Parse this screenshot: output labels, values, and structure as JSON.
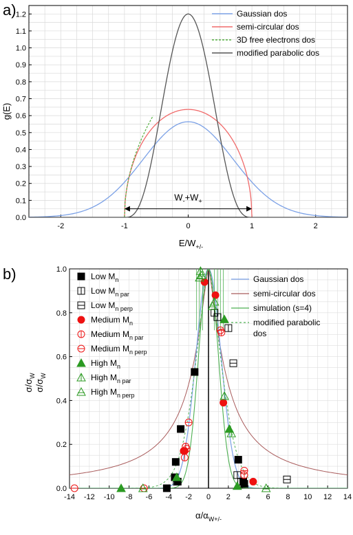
{
  "colors": {
    "gaussian": "#7aa0e6",
    "semicircular": "#f06a6a",
    "free3d": "#55b040",
    "parabolic": "#555555",
    "b_semicircular": "#a85a5a",
    "simulation": "#4caf50",
    "low": "#000000",
    "medium": "#ee1111",
    "high": "#2b9a22"
  },
  "chart_data": [
    {
      "panel": "a)",
      "type": "line",
      "xlabel": "E/W",
      "xlabel_sub": "+/-",
      "ylabel": "g(E)",
      "xlim": [
        -2.5,
        2.5
      ],
      "ylim": [
        0,
        1.25
      ],
      "xticks": [
        -2,
        -1,
        0,
        1,
        2
      ],
      "yticks": [
        0.0,
        0.1,
        0.2,
        0.3,
        0.4,
        0.5,
        0.6,
        0.7,
        0.8,
        0.9,
        1.0,
        1.1,
        1.2
      ],
      "grid": true,
      "legend_position": "top-right",
      "series": [
        {
          "name": "Gaussian dos",
          "color_key": "gaussian",
          "peak": 0.564,
          "note": "gaussian"
        },
        {
          "name": "semi-circular dos",
          "color_key": "semicircular",
          "peak": 0.637
        },
        {
          "name": "3D free electrons dos",
          "color_key": "free3d",
          "style": "dashed",
          "x_range": [
            -1,
            -0.55
          ]
        },
        {
          "name": "modified parabolic dos",
          "color_key": "parabolic",
          "peak": 1.2
        }
      ],
      "annotation": {
        "text": "W",
        "sub1": "-",
        "mid": "+W",
        "sub2": "+",
        "from": -1,
        "to": 1,
        "y": 0.05
      }
    },
    {
      "panel": "b)",
      "type": "scatter",
      "xlabel": "α/α",
      "xlabel_sub": "W+/-",
      "ylabel1": "σ/σ",
      "ylabel1_sub": "W",
      "ylabel2": "σ/σ",
      "ylabel2_sub": "W",
      "xlim": [
        -14,
        14
      ],
      "ylim": [
        0,
        1.0
      ],
      "xticks": [
        -14,
        -12,
        -10,
        -8,
        -6,
        -4,
        -2,
        0,
        2,
        4,
        6,
        8,
        10,
        12,
        14
      ],
      "yticks": [
        0.0,
        0.2,
        0.4,
        0.6,
        0.8,
        1.0
      ],
      "grid": true,
      "legend_left": [
        {
          "label": "Low M",
          "sub": "n",
          "marker": "square-filled",
          "color_key": "low"
        },
        {
          "label": "Low M",
          "sub": "n par",
          "marker": "square-bar",
          "color_key": "low"
        },
        {
          "label": "Low M",
          "sub": "n perp",
          "marker": "square-dash",
          "color_key": "low"
        },
        {
          "label": "Medium M",
          "sub": "n",
          "marker": "circle-filled",
          "color_key": "medium"
        },
        {
          "label": "Medium M",
          "sub": "n par",
          "marker": "circle-bar",
          "color_key": "medium"
        },
        {
          "label": "Medium M",
          "sub": "n perp",
          "marker": "circle-dash",
          "color_key": "medium"
        },
        {
          "label": "High M",
          "sub": "n",
          "marker": "tri-filled",
          "color_key": "high"
        },
        {
          "label": "High M",
          "sub": "n par",
          "marker": "tri-bar",
          "color_key": "high"
        },
        {
          "label": "High M",
          "sub": "n perp",
          "marker": "tri-dash",
          "color_key": "high"
        }
      ],
      "legend_right": [
        {
          "label": "Gaussian dos",
          "color_key": "gaussian",
          "style": "solid"
        },
        {
          "label": "semi-circular dos",
          "color_key": "b_semicircular",
          "style": "solid"
        },
        {
          "label": "simulation (s=4)",
          "color_key": "simulation",
          "style": "solid"
        },
        {
          "label": "modified parabolic",
          "label2": "dos",
          "color_key": "simulation",
          "style": "dashed"
        }
      ],
      "series": [
        {
          "name": "Low Mn",
          "marker": "square-filled",
          "color_key": "low",
          "points": [
            [
              -4.2,
              0.0
            ],
            [
              -3.4,
              0.05
            ],
            [
              -3.1,
              0.03
            ],
            [
              -3.3,
              0.12
            ],
            [
              -2.8,
              0.27
            ],
            [
              -1.4,
              0.53
            ],
            [
              3.0,
              0.13
            ],
            [
              3.5,
              0.03
            ],
            [
              3.6,
              0.02
            ]
          ]
        },
        {
          "name": "Low Mn par",
          "marker": "square-bar",
          "color_key": "low",
          "points": [
            [
              0.9,
              0.78
            ],
            [
              0.6,
              0.8
            ],
            [
              2.0,
              0.73
            ],
            [
              2.9,
              0.06
            ],
            [
              3.3,
              0.03
            ]
          ]
        },
        {
          "name": "Low Mn perp",
          "marker": "square-dash",
          "color_key": "low",
          "points": [
            [
              -3.2,
              0.03
            ],
            [
              2.5,
              0.57
            ],
            [
              7.9,
              0.04
            ]
          ]
        },
        {
          "name": "Medium Mn",
          "marker": "circle-filled",
          "color_key": "medium",
          "points": [
            [
              -0.4,
              0.94
            ],
            [
              0.7,
              0.88
            ],
            [
              1.5,
              0.39
            ],
            [
              -2.5,
              0.17
            ],
            [
              4.5,
              0.03
            ],
            [
              -2.4,
              0.17
            ]
          ]
        },
        {
          "name": "Medium Mn par",
          "marker": "circle-bar",
          "color_key": "medium",
          "points": [
            [
              -2.4,
              0.14
            ],
            [
              -2.3,
              0.19
            ],
            [
              3.6,
              0.06
            ],
            [
              1.3,
              0.71
            ]
          ]
        },
        {
          "name": "Medium Mn perp",
          "marker": "circle-dash",
          "color_key": "medium",
          "points": [
            [
              -13.5,
              0.0
            ],
            [
              -6.5,
              0.0
            ],
            [
              -2.0,
              0.3
            ],
            [
              -2.2,
              0.18
            ],
            [
              3.6,
              0.08
            ],
            [
              1.2,
              0.72
            ]
          ]
        },
        {
          "name": "High Mn",
          "marker": "tri-filled",
          "color_key": "high",
          "points": [
            [
              -8.8,
              0.0
            ],
            [
              1.6,
              0.77
            ],
            [
              2.1,
              0.27
            ],
            [
              2.9,
              0.01
            ],
            [
              -3.2,
              0.05
            ]
          ]
        },
        {
          "name": "High Mn par",
          "marker": "tri-bar",
          "color_key": "high",
          "points": [
            [
              -0.8,
              0.99
            ],
            [
              1.6,
              0.42
            ],
            [
              2.3,
              0.25
            ],
            [
              0.6,
              0.85
            ]
          ]
        },
        {
          "name": "High Mn perp",
          "marker": "tri-dash",
          "color_key": "high",
          "points": [
            [
              -6.6,
              0.0
            ],
            [
              -0.7,
              0.97
            ],
            [
              5.8,
              0.0
            ],
            [
              0.4,
              0.83
            ],
            [
              -0.9,
              0.96
            ]
          ]
        }
      ]
    }
  ]
}
